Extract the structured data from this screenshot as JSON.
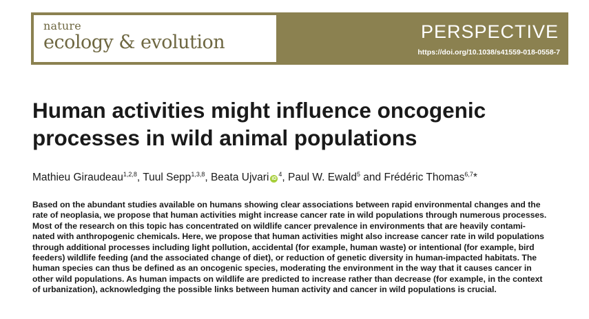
{
  "journal": {
    "name_small": "nature",
    "name_big": "ecology & evolution",
    "brand_color": "#8b8150"
  },
  "article_type": "PERSPECTIVE",
  "doi": "https://doi.org/10.1038/s41559-018-0558-7",
  "title_lines": [
    "Human activities might influence oncogenic",
    "processes in wild animal populations"
  ],
  "authors": [
    {
      "name": "Mathieu Giraudeau",
      "aff": "1,2,8",
      "sep": ", "
    },
    {
      "name": "Tuul Sepp",
      "aff": "1,3,8",
      "sep": ", "
    },
    {
      "name": "Beata Ujvari",
      "aff": "4",
      "sep": ", ",
      "orcid": true
    },
    {
      "name": "Paul W. Ewald",
      "aff": "5",
      "sep": " and "
    },
    {
      "name": "Frédéric Thomas",
      "aff": "6,7",
      "sep": "*"
    }
  ],
  "abstract_lines": [
    "Based on the abundant studies available on humans showing clear associations between rapid environmental changes and the",
    "rate of neoplasia, we propose that human activities might increase cancer rate in wild populations through numerous processes.",
    "Most of the research on this topic has concentrated on wildlife cancer prevalence in environments that are heavily contami-",
    "nated with anthropogenic chemicals. Here, we propose that human activities might also increase cancer rate in wild populations",
    "through additional processes including light pollution, accidental (for example, human waste) or intentional (for example, bird",
    "feeders) wildlife feeding (and the associated change of diet), or reduction of genetic diversity in human-impacted habitats. The",
    "human species can thus be defined as an oncogenic species, moderating the environment in the way that it causes cancer in",
    "other wild populations. As human impacts on wildlife are predicted to increase rather than decrease (for example, in the context",
    "of urbanization), acknowledging the possible links between human activity and cancer in wild populations is crucial."
  ]
}
